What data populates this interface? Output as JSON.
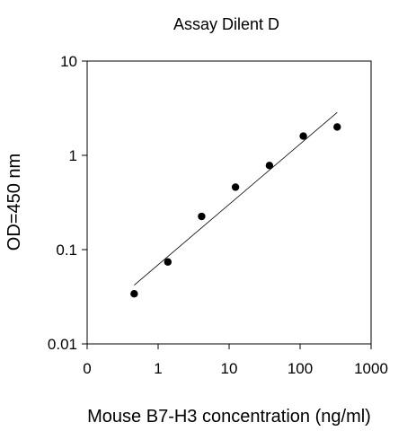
{
  "chart_data": {
    "type": "scatter",
    "title": "Assay Dilent D",
    "xlabel": "Mouse B7-H3 concentration (ng/ml)",
    "ylabel": "OD=450 nm",
    "x_scale": "log",
    "y_scale": "log",
    "xlim": [
      0.1,
      1000
    ],
    "ylim": [
      0.01,
      10
    ],
    "x_ticks": [
      "0",
      "1",
      "10",
      "100",
      "1000"
    ],
    "y_ticks": [
      "0.01",
      "0.1",
      "1",
      "10"
    ],
    "grid": false,
    "legend": "none",
    "series": [
      {
        "points": [
          {
            "x": 0.46,
            "y": 0.034
          },
          {
            "x": 1.37,
            "y": 0.074
          },
          {
            "x": 4.1,
            "y": 0.225
          },
          {
            "x": 12.3,
            "y": 0.46
          },
          {
            "x": 37,
            "y": 0.78
          },
          {
            "x": 111,
            "y": 1.6
          },
          {
            "x": 333,
            "y": 2.0
          }
        ],
        "fit": {
          "type": "line",
          "from": {
            "x": 0.46,
            "y": 0.042
          },
          "to": {
            "x": 333,
            "y": 2.85
          }
        }
      }
    ],
    "colors": {
      "marker": "#000000",
      "fit": "#000000",
      "axes": "#000000"
    }
  }
}
